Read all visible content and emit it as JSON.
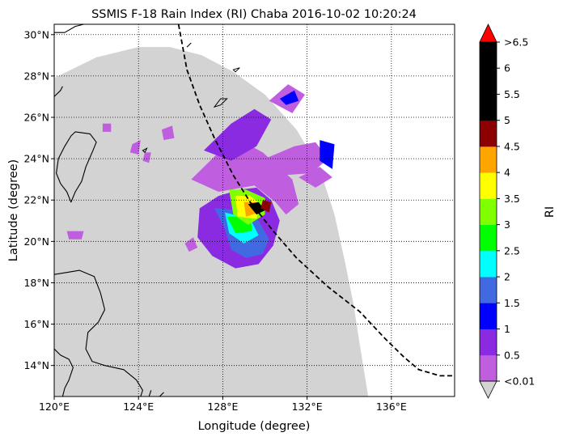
{
  "chart_data": {
    "type": "map",
    "title": "SSMIS F-18 Rain Index (RI) Chaba 2016-10-02 10:20:24",
    "xlabel": "Longitude (degree)",
    "ylabel": "Latitude (degree)",
    "xlim": [
      120,
      139
    ],
    "ylim": [
      12.5,
      30.5
    ],
    "x_ticks": [
      {
        "value": 120,
        "label": "120°E"
      },
      {
        "value": 124,
        "label": "124°E"
      },
      {
        "value": 128,
        "label": "128°E"
      },
      {
        "value": 132,
        "label": "132°E"
      },
      {
        "value": 136,
        "label": "136°E"
      }
    ],
    "y_ticks": [
      {
        "value": 14,
        "label": "14°N"
      },
      {
        "value": 16,
        "label": "16°N"
      },
      {
        "value": 18,
        "label": "18°N"
      },
      {
        "value": 20,
        "label": "20°N"
      },
      {
        "value": 22,
        "label": "22°N"
      },
      {
        "value": 24,
        "label": "24°N"
      },
      {
        "value": 26,
        "label": "26°N"
      },
      {
        "value": 28,
        "label": "28°N"
      },
      {
        "value": 30,
        "label": "30°N"
      }
    ],
    "colorbar": {
      "label": "RI",
      "levels": [
        0.01,
        0.5,
        1,
        1.5,
        2,
        2.5,
        3,
        3.5,
        4,
        4.5,
        5,
        5.5,
        6,
        6.5
      ],
      "tick_labels": [
        "<0.01",
        "0.5",
        "1",
        "1.5",
        "2",
        "2.5",
        "3",
        "3.5",
        "4",
        "4.5",
        "5",
        "5.5",
        "6",
        ">6.5"
      ],
      "colors": [
        "#bf5fdf",
        "#8a2be2",
        "#0000ff",
        "#4169e1",
        "#00ffff",
        "#00ff00",
        "#7fff00",
        "#ffff00",
        "#ffa500",
        "#8b0000",
        "#000000",
        "#000000",
        "#000000"
      ],
      "under_color": "#d3d3d3",
      "over_color": "#ff0000"
    },
    "swath": {
      "color": "#d3d3d3",
      "outline": [
        [
          120,
          27.9
        ],
        [
          122,
          28.9
        ],
        [
          124,
          29.4
        ],
        [
          125.5,
          29.4
        ],
        [
          127,
          29
        ],
        [
          128.5,
          28.2
        ],
        [
          130,
          27.1
        ],
        [
          131.5,
          25.4
        ],
        [
          132.6,
          23.5
        ],
        [
          133.3,
          21.3
        ],
        [
          133.8,
          19
        ],
        [
          134.2,
          17
        ],
        [
          134.5,
          15
        ],
        [
          134.9,
          12.5
        ],
        [
          120,
          12.5
        ]
      ]
    },
    "rain_regions": [
      {
        "level": 1,
        "points": [
          [
            128.8,
            22.5
          ],
          [
            127.8,
            22.2
          ],
          [
            126.9,
            21.6
          ],
          [
            126.8,
            20.2
          ],
          [
            127.5,
            19.3
          ],
          [
            128.6,
            18.7
          ],
          [
            129.7,
            18.9
          ],
          [
            130.4,
            19.8
          ],
          [
            130.7,
            21.0
          ],
          [
            130.3,
            22.0
          ],
          [
            129.6,
            22.6
          ]
        ]
      },
      {
        "level": 0,
        "points": [
          [
            126.5,
            23.0
          ],
          [
            127.7,
            24.2
          ],
          [
            128.8,
            24.9
          ],
          [
            129.9,
            24.3
          ],
          [
            131.3,
            23.0
          ],
          [
            131.6,
            21.8
          ],
          [
            131.0,
            21.3
          ],
          [
            130.5,
            21.9
          ],
          [
            129.5,
            22.7
          ],
          [
            127.8,
            22.4
          ]
        ]
      },
      {
        "level": 1,
        "points": [
          [
            127.1,
            24.4
          ],
          [
            128.4,
            25.7
          ],
          [
            129.5,
            26.4
          ],
          [
            130.3,
            25.9
          ],
          [
            129.6,
            24.6
          ],
          [
            128.4,
            23.9
          ]
        ]
      },
      {
        "level": 0,
        "points": [
          [
            130.2,
            26.8
          ],
          [
            131.1,
            27.6
          ],
          [
            131.9,
            27.1
          ],
          [
            131.3,
            26.2
          ]
        ]
      },
      {
        "level": 2,
        "points": [
          [
            130.7,
            26.9
          ],
          [
            131.4,
            27.3
          ],
          [
            131.6,
            26.8
          ],
          [
            131.0,
            26.6
          ]
        ]
      },
      {
        "level": 0,
        "points": [
          [
            130.0,
            24.0
          ],
          [
            131.4,
            24.6
          ],
          [
            132.4,
            24.8
          ],
          [
            133.0,
            24.0
          ],
          [
            132.2,
            23.3
          ],
          [
            130.8,
            23.2
          ]
        ]
      },
      {
        "level": 2,
        "points": [
          [
            132.6,
            24.9
          ],
          [
            133.3,
            24.7
          ],
          [
            133.2,
            23.5
          ],
          [
            132.6,
            23.9
          ]
        ]
      },
      {
        "level": 0,
        "points": [
          [
            131.6,
            23.1
          ],
          [
            132.6,
            23.6
          ],
          [
            133.2,
            23.1
          ],
          [
            132.4,
            22.6
          ]
        ]
      },
      {
        "level": 3,
        "points": [
          [
            127.6,
            21.6
          ],
          [
            128.1,
            20.6
          ],
          [
            128.4,
            19.6
          ],
          [
            129.1,
            19.2
          ],
          [
            129.9,
            19.4
          ],
          [
            130.2,
            20.1
          ],
          [
            129.7,
            21.0
          ],
          [
            128.9,
            21.5
          ]
        ]
      },
      {
        "level": 4,
        "points": [
          [
            128.1,
            21.4
          ],
          [
            128.3,
            20.4
          ],
          [
            129.0,
            19.9
          ],
          [
            129.7,
            20.3
          ],
          [
            129.3,
            21.1
          ]
        ]
      },
      {
        "level": 5,
        "points": [
          [
            128.2,
            21.2
          ],
          [
            128.6,
            20.4
          ],
          [
            129.4,
            20.5
          ],
          [
            129.3,
            21.2
          ]
        ]
      },
      {
        "level": 6,
        "points": [
          [
            128.3,
            22.5
          ],
          [
            128.5,
            21.3
          ],
          [
            129.2,
            20.8
          ],
          [
            130.0,
            21.3
          ],
          [
            130.0,
            22.1
          ],
          [
            129.1,
            22.5
          ]
        ]
      },
      {
        "level": 7,
        "points": [
          [
            128.6,
            22.2
          ],
          [
            128.7,
            21.2
          ],
          [
            129.6,
            21.1
          ],
          [
            129.8,
            21.8
          ],
          [
            129.3,
            22.2
          ]
        ]
      },
      {
        "level": 8,
        "points": [
          [
            129.0,
            21.9
          ],
          [
            129.1,
            21.2
          ],
          [
            129.7,
            21.4
          ],
          [
            129.6,
            21.9
          ]
        ]
      },
      {
        "level": 10,
        "points": [
          [
            129.2,
            21.8
          ],
          [
            129.6,
            21.3
          ],
          [
            130.0,
            21.5
          ],
          [
            129.7,
            21.9
          ]
        ]
      },
      {
        "level": 9,
        "points": [
          [
            129.8,
            21.6
          ],
          [
            130.2,
            21.4
          ],
          [
            130.3,
            21.9
          ],
          [
            129.9,
            22.0
          ]
        ]
      },
      {
        "level": 0,
        "points": [
          [
            126.2,
            19.9
          ],
          [
            126.6,
            20.2
          ],
          [
            126.8,
            19.7
          ],
          [
            126.4,
            19.5
          ]
        ]
      },
      {
        "level": 0,
        "points": [
          [
            120.6,
            20.5
          ],
          [
            121.4,
            20.5
          ],
          [
            121.3,
            20.1
          ],
          [
            120.7,
            20.1
          ]
        ]
      },
      {
        "level": 0,
        "points": [
          [
            122.3,
            25.7
          ],
          [
            122.7,
            25.7
          ],
          [
            122.7,
            25.3
          ],
          [
            122.3,
            25.3
          ]
        ]
      },
      {
        "level": 0,
        "points": [
          [
            123.7,
            24.7
          ],
          [
            124.1,
            24.9
          ],
          [
            124.0,
            24.2
          ],
          [
            123.6,
            24.3
          ]
        ]
      },
      {
        "level": 0,
        "points": [
          [
            124.3,
            24.3
          ],
          [
            124.6,
            24.3
          ],
          [
            124.5,
            23.8
          ],
          [
            124.2,
            23.9
          ]
        ]
      },
      {
        "level": 0,
        "points": [
          [
            125.1,
            25.4
          ],
          [
            125.6,
            25.6
          ],
          [
            125.7,
            25.0
          ],
          [
            125.2,
            24.9
          ]
        ]
      }
    ],
    "storm_track": [
      [
        125.9,
        30.5
      ],
      [
        126.3,
        28.3
      ],
      [
        126.9,
        26.6
      ],
      [
        127.6,
        25.0
      ],
      [
        128.5,
        23.2
      ],
      [
        129.3,
        21.9
      ],
      [
        130.4,
        20.5
      ],
      [
        131.5,
        19.2
      ],
      [
        133.0,
        17.8
      ],
      [
        134.5,
        16.6
      ],
      [
        135.7,
        15.3
      ],
      [
        136.6,
        14.4
      ],
      [
        137.3,
        13.8
      ],
      [
        138.3,
        13.5
      ],
      [
        139.0,
        13.5
      ]
    ],
    "coastlines": [
      [
        [
          121.0,
          25.3
        ],
        [
          121.7,
          25.2
        ],
        [
          122.0,
          24.8
        ],
        [
          121.8,
          24.3
        ],
        [
          121.5,
          23.6
        ],
        [
          121.3,
          22.9
        ],
        [
          121.0,
          22.4
        ],
        [
          120.8,
          21.9
        ],
        [
          120.6,
          22.4
        ],
        [
          120.3,
          22.8
        ],
        [
          120.1,
          23.3
        ],
        [
          120.2,
          24.0
        ],
        [
          120.5,
          24.6
        ],
        [
          120.8,
          25.1
        ],
        [
          121.0,
          25.3
        ]
      ],
      [
        [
          120.0,
          18.4
        ],
        [
          120.6,
          18.5
        ],
        [
          121.2,
          18.6
        ],
        [
          121.9,
          18.3
        ],
        [
          122.2,
          17.5
        ],
        [
          122.4,
          16.7
        ],
        [
          122.1,
          16.1
        ],
        [
          121.6,
          15.6
        ],
        [
          121.5,
          14.8
        ],
        [
          121.8,
          14.2
        ],
        [
          122.4,
          14.0
        ],
        [
          123.3,
          13.8
        ],
        [
          123.9,
          13.3
        ],
        [
          124.2,
          12.8
        ],
        [
          124.1,
          12.5
        ]
      ],
      [
        [
          120.0,
          14.8
        ],
        [
          120.3,
          14.5
        ],
        [
          120.7,
          14.3
        ],
        [
          120.9,
          13.9
        ],
        [
          120.7,
          13.3
        ],
        [
          120.5,
          12.9
        ],
        [
          120.4,
          12.5
        ]
      ],
      [
        [
          120.0,
          30.1
        ],
        [
          120.5,
          30.1
        ],
        [
          121.0,
          30.4
        ],
        [
          121.4,
          30.5
        ]
      ],
      [
        [
          120.0,
          27.0
        ],
        [
          120.3,
          27.3
        ],
        [
          120.4,
          27.5
        ]
      ],
      [
        [
          126.3,
          29.4
        ],
        [
          126.5,
          29.6
        ]
      ],
      [
        [
          124.5,
          12.5
        ],
        [
          124.6,
          12.8
        ]
      ],
      [
        [
          125.0,
          12.5
        ],
        [
          125.2,
          12.7
        ]
      ]
    ],
    "islands": [
      [
        [
          127.6,
          26.5
        ],
        [
          127.9,
          26.6
        ],
        [
          128.2,
          26.9
        ],
        [
          127.9,
          26.9
        ]
      ],
      [
        [
          128.5,
          28.3
        ],
        [
          128.8,
          28.4
        ],
        [
          128.6,
          28.2
        ]
      ],
      [
        [
          124.2,
          24.4
        ],
        [
          124.4,
          24.5
        ],
        [
          124.3,
          24.3
        ]
      ]
    ]
  }
}
